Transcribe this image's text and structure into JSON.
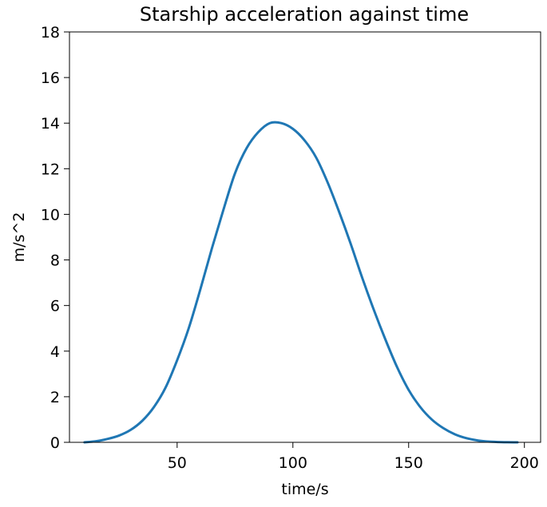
{
  "chart_data": {
    "type": "line",
    "title": "Starship acceleration against time",
    "xlabel": "time/s",
    "ylabel": "m/s^2",
    "xlim": [
      3.5,
      207
    ],
    "ylim": [
      0,
      18
    ],
    "xticks": [
      50,
      100,
      150,
      200
    ],
    "yticks": [
      0,
      2,
      4,
      6,
      8,
      10,
      12,
      14,
      16,
      18
    ],
    "grid": false,
    "legend": "none",
    "series": [
      {
        "color": "#1f77b4",
        "x": [
          10,
          15,
          20,
          25,
          30,
          35,
          40,
          45,
          50,
          55,
          60,
          65,
          70,
          75,
          80,
          85,
          90,
          95,
          100,
          105,
          110,
          115,
          120,
          125,
          130,
          135,
          140,
          145,
          150,
          155,
          160,
          165,
          170,
          175,
          180,
          185,
          190,
          197
        ],
        "y": [
          0.0,
          0.05,
          0.15,
          0.3,
          0.55,
          0.95,
          1.55,
          2.4,
          3.6,
          5.0,
          6.7,
          8.5,
          10.2,
          11.8,
          12.9,
          13.6,
          14.0,
          14.0,
          13.75,
          13.25,
          12.5,
          11.4,
          10.1,
          8.7,
          7.2,
          5.8,
          4.5,
          3.3,
          2.3,
          1.55,
          1.0,
          0.62,
          0.35,
          0.18,
          0.08,
          0.03,
          0.01,
          0.0
        ]
      }
    ]
  }
}
